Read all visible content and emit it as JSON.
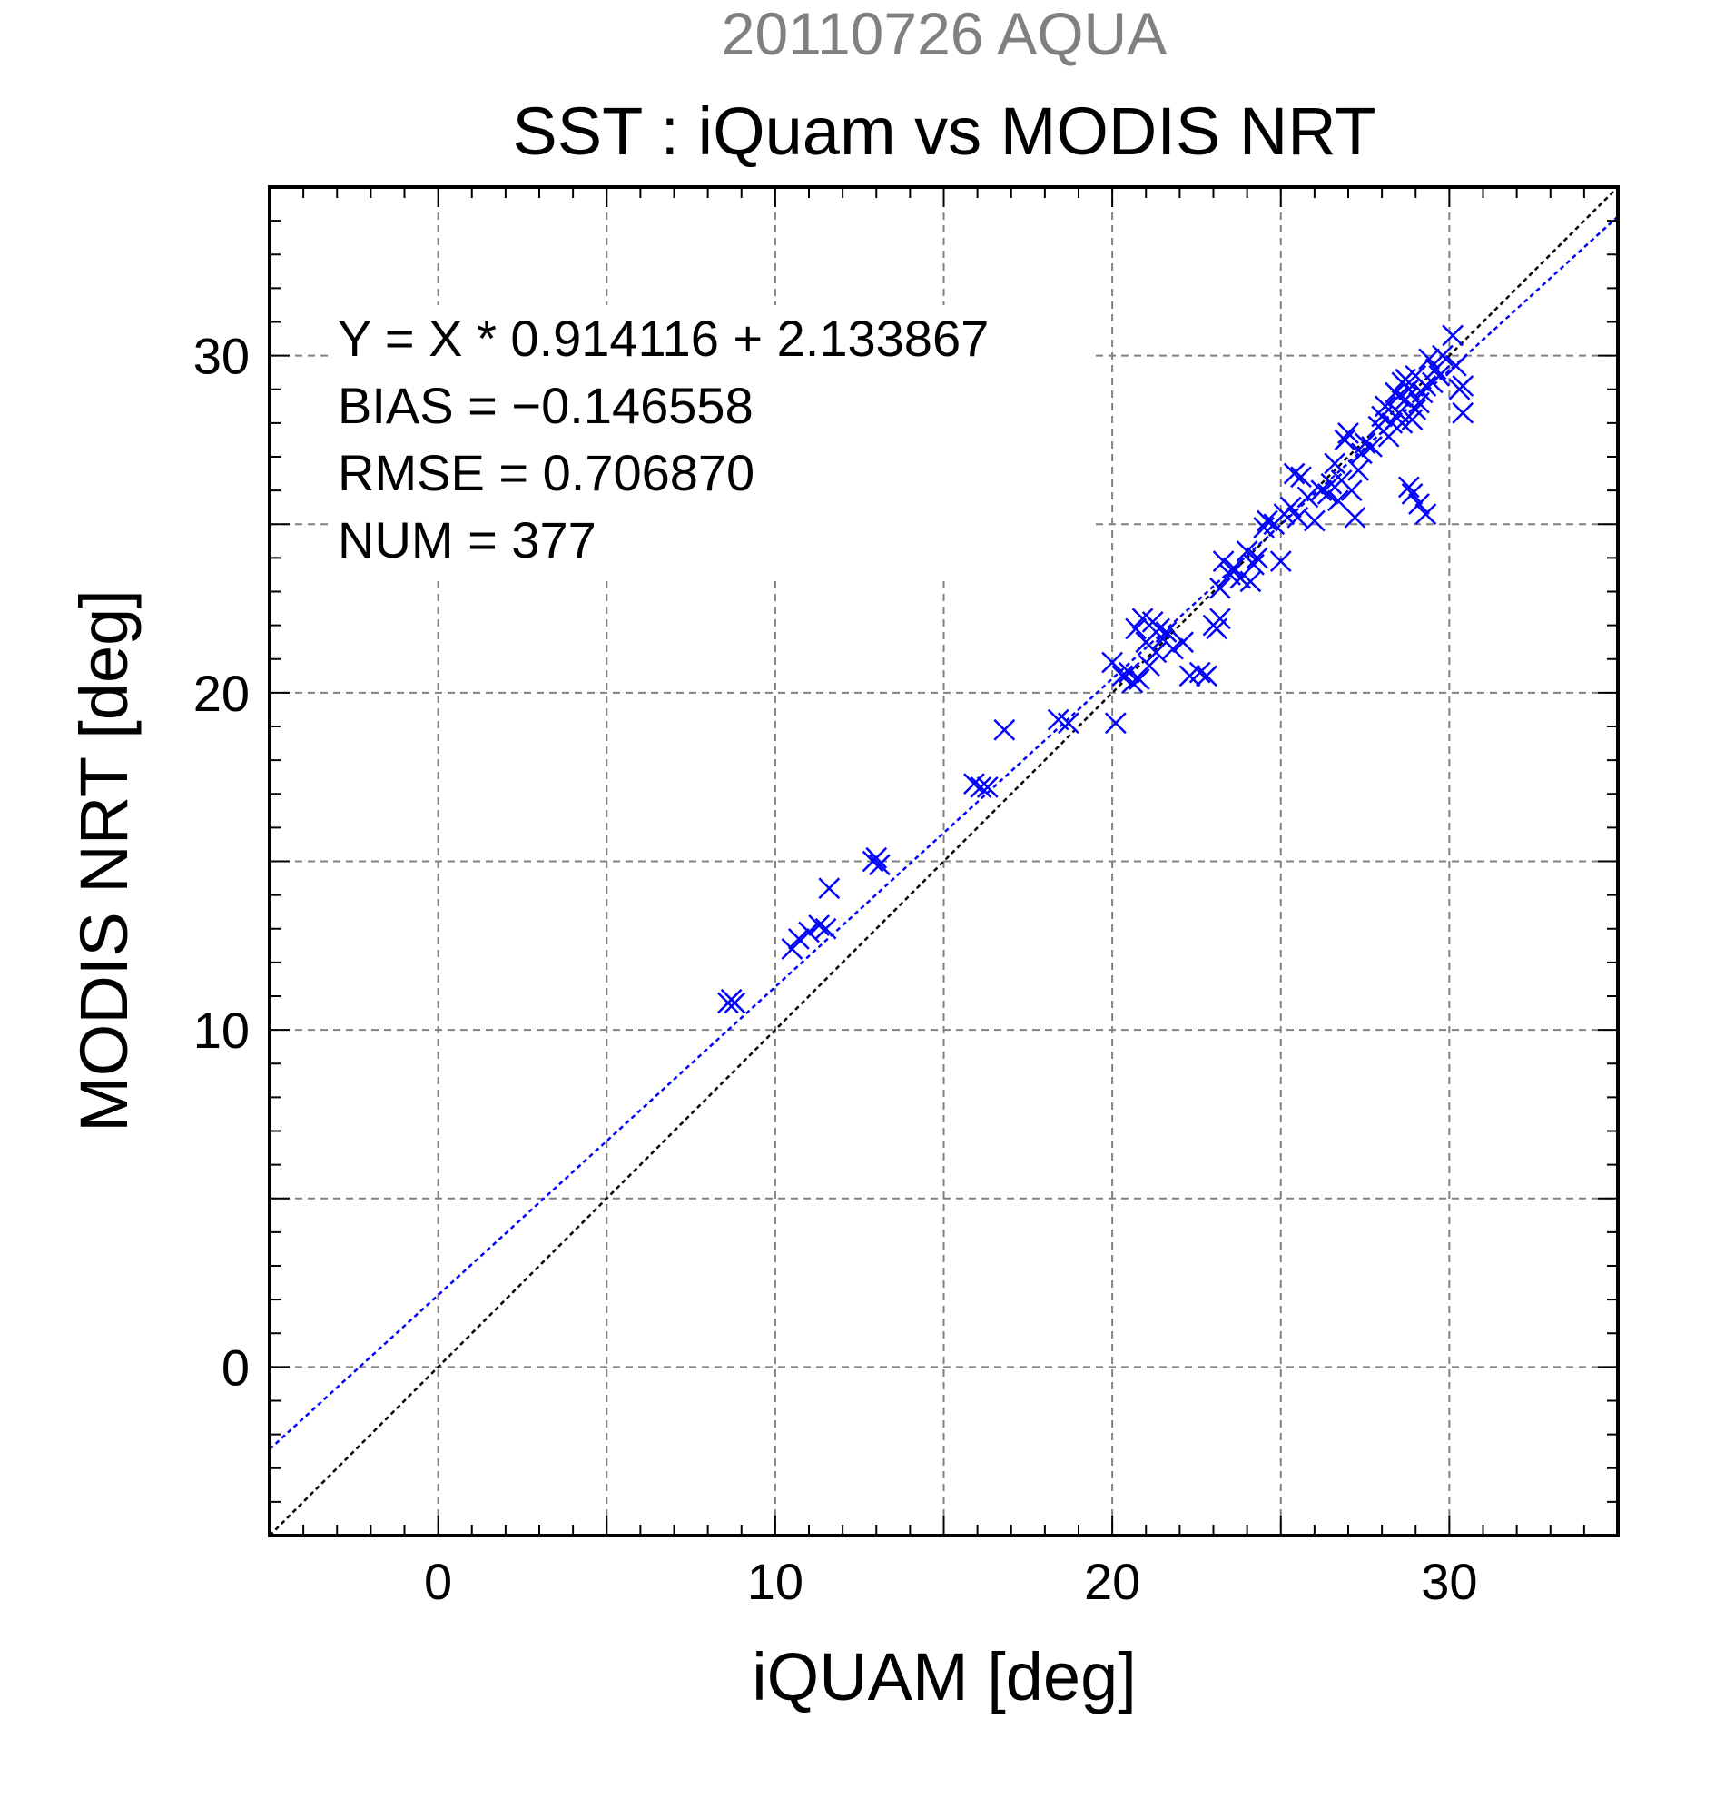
{
  "chart_data": {
    "type": "scatter",
    "title": "SST : iQuam vs MODIS NRT",
    "subtitle": "20110726 AQUA",
    "xlabel": "iQUAM [deg]",
    "ylabel": "MODIS NRT [deg]",
    "xlim": [
      -5,
      35
    ],
    "ylim": [
      -5,
      35
    ],
    "xticks": [
      "0",
      "10",
      "20",
      "30"
    ],
    "yticks": [
      "0",
      "10",
      "20",
      "30"
    ],
    "grid": true,
    "grid_step": 5,
    "minor_tick_step": 1,
    "colors": {
      "points": "#0000ff",
      "fit_line": "#0000ff",
      "identity_line": "#000000",
      "subtitle": "#808080"
    },
    "annotations": [
      "Y = X * 0.914116 + 2.133867",
      "BIAS = −0.146558",
      "RMSE = 0.706870",
      "NUM = 377"
    ],
    "fit_line": {
      "slope": 0.914116,
      "intercept": 2.133867
    },
    "identity_line": {
      "slope": 1,
      "intercept": 0
    },
    "series": [
      {
        "marker": "x",
        "points": [
          [
            8.7,
            10.9
          ],
          [
            8.8,
            10.8
          ],
          [
            8.6,
            10.8
          ],
          [
            10.5,
            12.4
          ],
          [
            10.7,
            12.7
          ],
          [
            11.0,
            12.9
          ],
          [
            11.3,
            13.1
          ],
          [
            11.5,
            13.0
          ],
          [
            11.6,
            14.2
          ],
          [
            12.9,
            15.0
          ],
          [
            13.1,
            14.9
          ],
          [
            13.0,
            15.1
          ],
          [
            15.9,
            17.3
          ],
          [
            16.1,
            17.2
          ],
          [
            16.3,
            17.2
          ],
          [
            16.8,
            18.9
          ],
          [
            18.4,
            19.2
          ],
          [
            18.7,
            19.1
          ],
          [
            20.0,
            20.9
          ],
          [
            20.1,
            19.1
          ],
          [
            20.3,
            20.5
          ],
          [
            20.5,
            20.6
          ],
          [
            20.6,
            20.3
          ],
          [
            20.7,
            21.9
          ],
          [
            20.8,
            20.4
          ],
          [
            20.9,
            22.2
          ],
          [
            21.0,
            21.5
          ],
          [
            21.1,
            20.8
          ],
          [
            21.2,
            22.1
          ],
          [
            21.3,
            21.2
          ],
          [
            21.4,
            21.9
          ],
          [
            21.5,
            21.6
          ],
          [
            21.6,
            21.8
          ],
          [
            21.8,
            21.3
          ],
          [
            22.1,
            21.5
          ],
          [
            22.3,
            20.5
          ],
          [
            22.6,
            20.6
          ],
          [
            22.8,
            20.5
          ],
          [
            23.0,
            22.0
          ],
          [
            23.2,
            22.2
          ],
          [
            23.1,
            21.9
          ],
          [
            23.2,
            23.1
          ],
          [
            23.3,
            23.9
          ],
          [
            23.5,
            23.5
          ],
          [
            23.6,
            23.7
          ],
          [
            23.8,
            23.4
          ],
          [
            24.0,
            24.2
          ],
          [
            24.2,
            23.8
          ],
          [
            24.3,
            24.0
          ],
          [
            24.1,
            23.3
          ],
          [
            24.5,
            24.9
          ],
          [
            24.6,
            25.1
          ],
          [
            24.8,
            25.0
          ],
          [
            25.0,
            23.9
          ],
          [
            25.1,
            25.3
          ],
          [
            25.3,
            25.5
          ],
          [
            25.5,
            25.2
          ],
          [
            25.4,
            26.5
          ],
          [
            25.6,
            26.4
          ],
          [
            25.8,
            25.8
          ],
          [
            26.0,
            25.1
          ],
          [
            26.2,
            26.0
          ],
          [
            26.4,
            25.9
          ],
          [
            26.5,
            26.2
          ],
          [
            26.6,
            26.8
          ],
          [
            26.7,
            25.7
          ],
          [
            26.8,
            26.3
          ],
          [
            26.9,
            27.5
          ],
          [
            27.0,
            27.7
          ],
          [
            27.1,
            26.0
          ],
          [
            27.2,
            25.2
          ],
          [
            27.3,
            26.6
          ],
          [
            27.4,
            27.1
          ],
          [
            27.5,
            27.4
          ],
          [
            27.7,
            27.3
          ],
          [
            27.9,
            27.9
          ],
          [
            28.0,
            28.2
          ],
          [
            28.1,
            28.5
          ],
          [
            28.2,
            27.6
          ],
          [
            28.3,
            28.0
          ],
          [
            28.4,
            28.9
          ],
          [
            28.5,
            28.3
          ],
          [
            28.6,
            29.2
          ],
          [
            28.7,
            28.7
          ],
          [
            28.8,
            29.0
          ],
          [
            28.9,
            28.1
          ],
          [
            29.0,
            29.4
          ],
          [
            29.1,
            28.6
          ],
          [
            29.2,
            28.9
          ],
          [
            28.8,
            26.1
          ],
          [
            28.9,
            25.9
          ],
          [
            29.1,
            25.6
          ],
          [
            29.3,
            25.3
          ],
          [
            29.4,
            29.9
          ],
          [
            29.5,
            29.2
          ],
          [
            29.6,
            29.6
          ],
          [
            29.7,
            29.4
          ],
          [
            29.8,
            30.0
          ],
          [
            30.1,
            30.6
          ],
          [
            30.2,
            29.7
          ],
          [
            30.3,
            29.0
          ],
          [
            30.4,
            28.3
          ],
          [
            30.4,
            29.1
          ],
          [
            28.5,
            28.8
          ],
          [
            28.7,
            29.3
          ],
          [
            29.0,
            28.4
          ],
          [
            28.6,
            28.0
          ],
          [
            29.3,
            29.1
          ]
        ]
      }
    ]
  }
}
